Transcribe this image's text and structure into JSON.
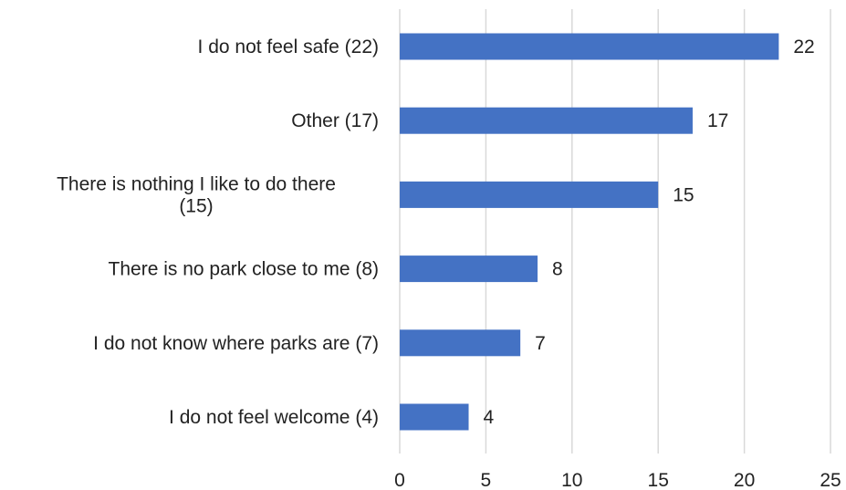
{
  "chart_data": {
    "type": "bar",
    "orientation": "horizontal",
    "title": "",
    "xlabel": "",
    "ylabel": "",
    "categories": [
      "I do not feel safe (22)",
      "Other (17)",
      "There is nothing I like to do there (15)",
      "There is no park close to me (8)",
      "I do not know where parks are (7)",
      "I do not feel welcome (4)"
    ],
    "category_lines": [
      [
        "I do not feel safe (22)"
      ],
      [
        "Other (17)"
      ],
      [
        "There is nothing I like to do there",
        "(15)"
      ],
      [
        "There is no park close to me (8)"
      ],
      [
        "I do not know where parks are (7)"
      ],
      [
        "I do not feel welcome (4)"
      ]
    ],
    "values": [
      22,
      17,
      15,
      8,
      7,
      4
    ],
    "data_labels": [
      "22",
      "17",
      "15",
      "8",
      "7",
      "4"
    ],
    "xlim": [
      0,
      25
    ],
    "xticks": [
      0,
      5,
      10,
      15,
      20,
      25
    ],
    "xtick_labels": [
      "0",
      "5",
      "10",
      "15",
      "20",
      "25"
    ],
    "grid": "vertical",
    "legend": "none",
    "bar_color": "#4472c4",
    "gridline_color": "#d9d9d9",
    "text_color": "#222222"
  }
}
